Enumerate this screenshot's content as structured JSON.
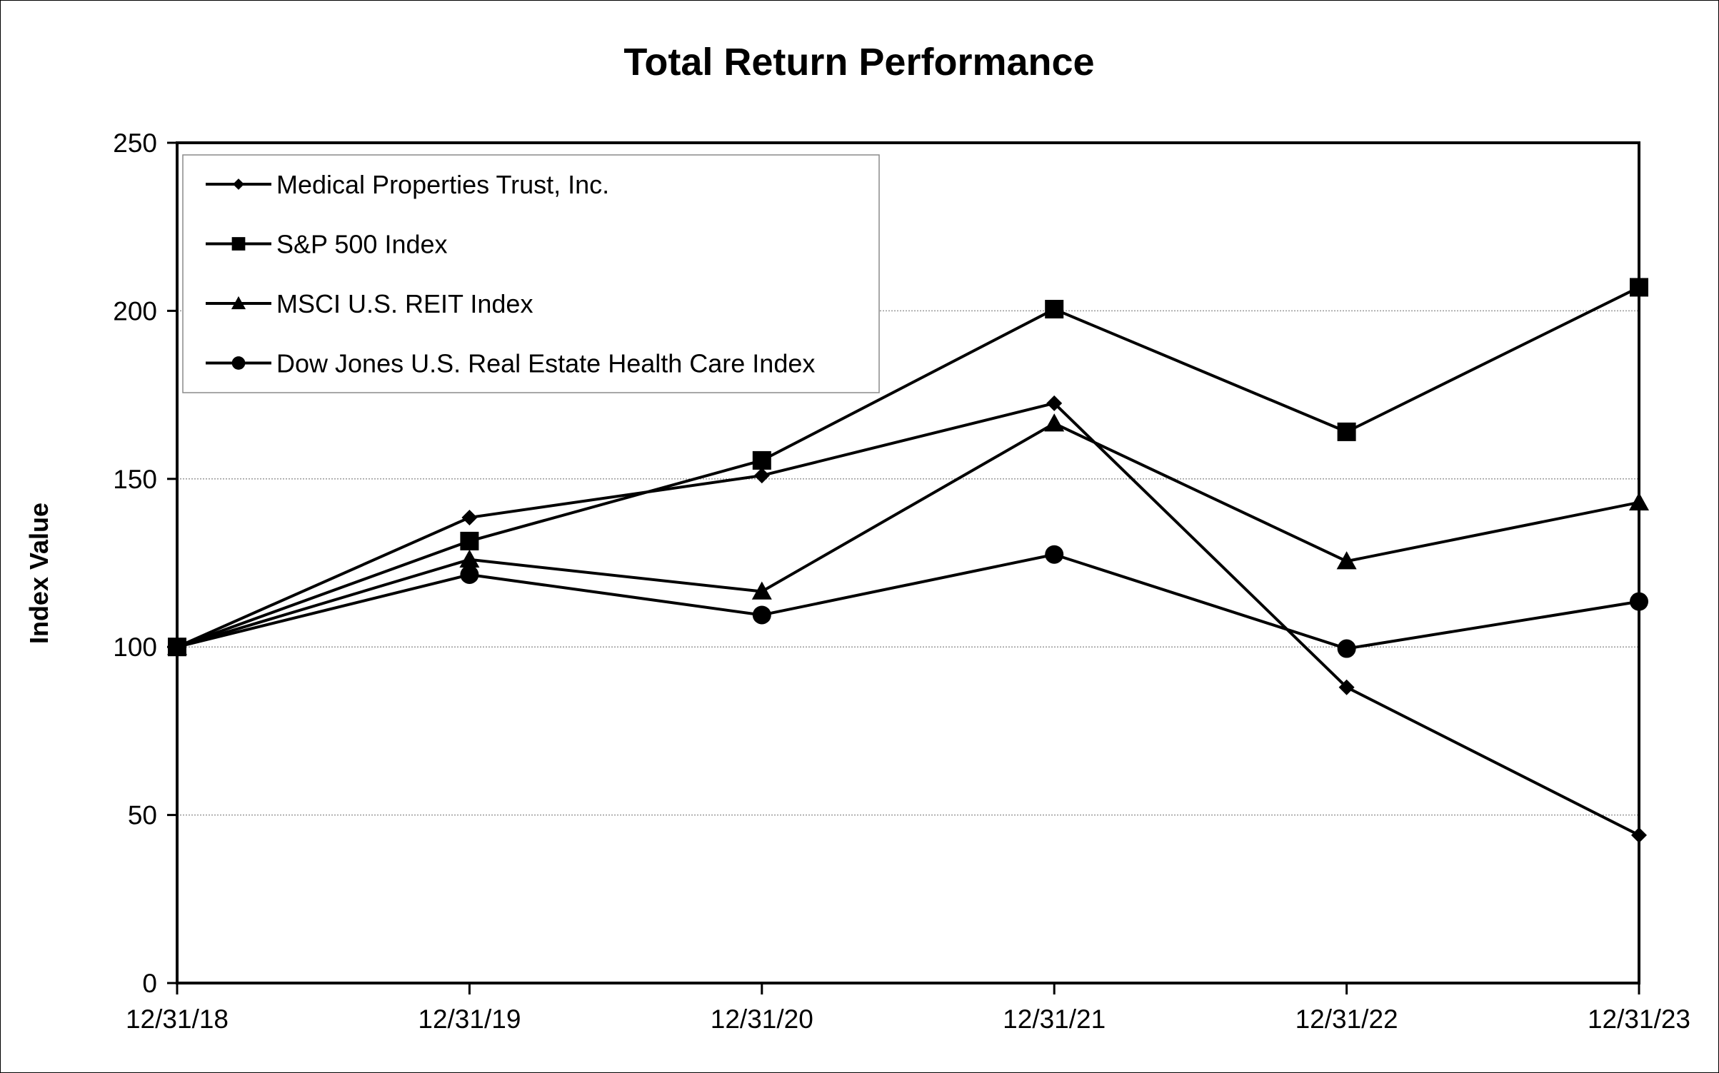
{
  "chart_data": {
    "type": "line",
    "title": "Total Return Performance",
    "xlabel": "",
    "ylabel": "Index Value",
    "categories": [
      "12/31/18",
      "12/31/19",
      "12/31/20",
      "12/31/21",
      "12/31/22",
      "12/31/23"
    ],
    "ylim": [
      0,
      250
    ],
    "yticks": [
      "0",
      "50",
      "100",
      "150",
      "200",
      "250"
    ],
    "grid": "horizontal dotted",
    "legend_position": "top-left",
    "series": [
      {
        "name": "Medical Properties Trust, Inc.",
        "marker": "diamond",
        "values": [
          100,
          138.5,
          151,
          172.5,
          88,
          44
        ]
      },
      {
        "name": "S&P 500 Index",
        "marker": "square",
        "values": [
          100,
          131.5,
          155.5,
          200.5,
          164,
          207
        ]
      },
      {
        "name": "MSCI U.S. REIT Index",
        "marker": "triangle",
        "values": [
          100,
          126,
          116.5,
          166.5,
          125.5,
          143
        ]
      },
      {
        "name": "Dow Jones U.S. Real Estate Health Care Index",
        "marker": "circle",
        "values": [
          100,
          121.5,
          109.5,
          127.5,
          99.5,
          113.5
        ]
      }
    ],
    "colors": {
      "line": "#000000",
      "grid": "#9a9a9a",
      "background": "#ffffff"
    }
  }
}
